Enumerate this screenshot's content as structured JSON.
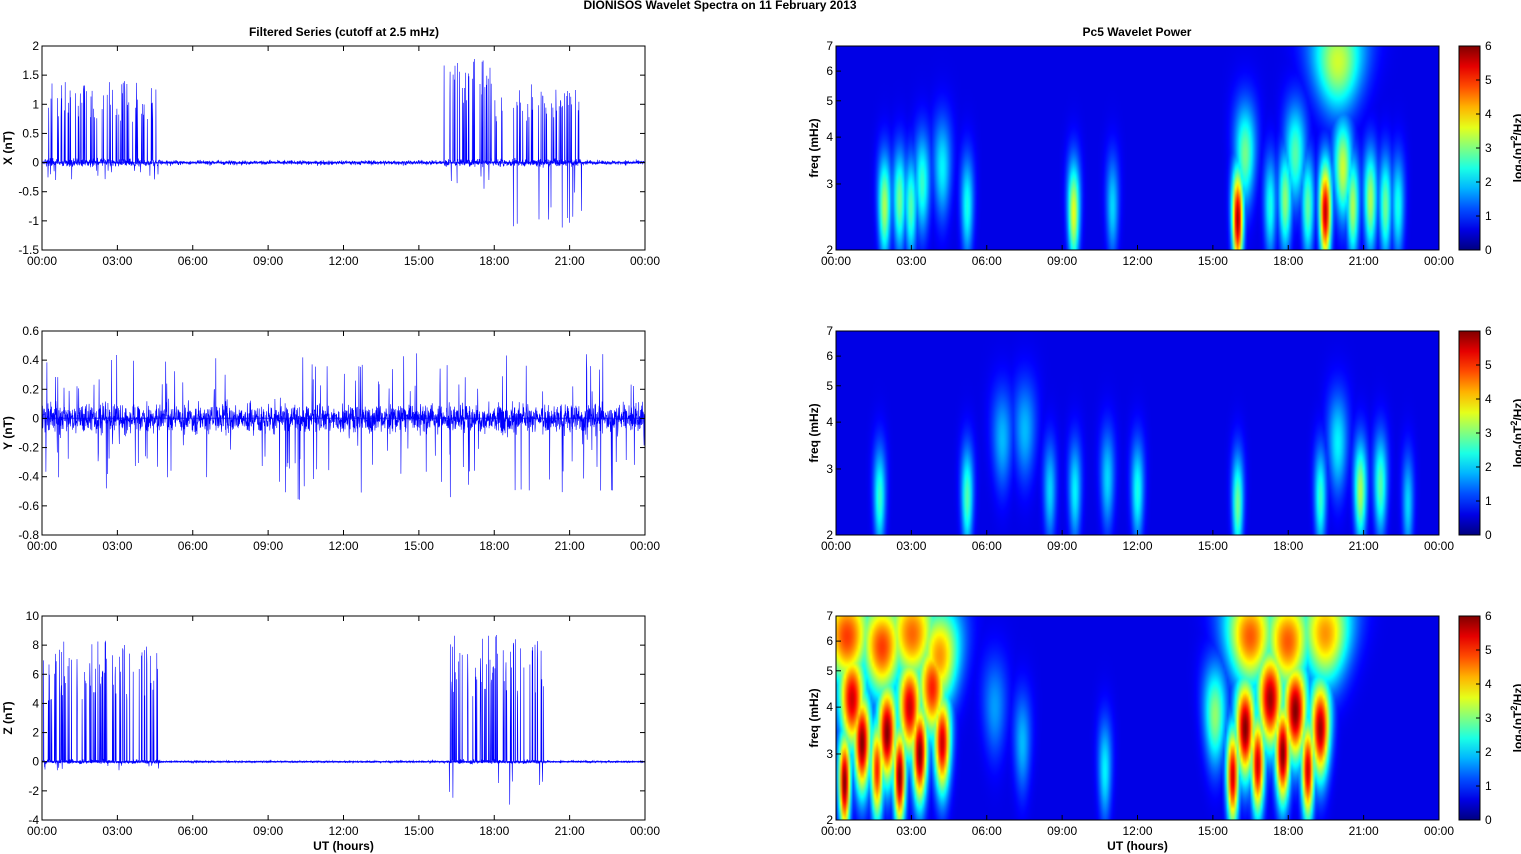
{
  "figure": {
    "title": "DIONISOS Wavelet Spectra on 11 February  2013",
    "left_title": "Filtered Series (cutoff at 2.5 mHz)",
    "right_title": "Pc5 Wavelet Power",
    "xlabel": "UT (hours)"
  },
  "colors": {
    "trace": "#0000ff",
    "spectrum_bg": "#00008f"
  },
  "chart_data": [
    {
      "type": "line",
      "name": "X component",
      "ylabel": "X (nT)",
      "x_ticks": [
        "00:00",
        "03:00",
        "06:00",
        "09:00",
        "12:00",
        "15:00",
        "18:00",
        "21:00",
        "00:00"
      ],
      "x_range_hours": [
        0,
        24
      ],
      "y_ticks": [
        2,
        1.5,
        1,
        0.5,
        0,
        -0.5,
        -1,
        -1.5
      ],
      "ylim": [
        -1.5,
        2
      ],
      "noise_amplitude": 0.06,
      "spike_bursts": [
        {
          "start": 0.05,
          "end": 4.7,
          "max": 1.4,
          "min": -0.3
        },
        {
          "start": 16.0,
          "end": 17.9,
          "max": 1.8,
          "min": -0.5
        },
        {
          "start": 18.0,
          "end": 21.5,
          "max": 1.35,
          "min": -1.2
        }
      ]
    },
    {
      "type": "line",
      "name": "Y component",
      "ylabel": "Y (nT)",
      "x_ticks": [
        "00:00",
        "03:00",
        "06:00",
        "09:00",
        "12:00",
        "15:00",
        "18:00",
        "21:00",
        "00:00"
      ],
      "x_range_hours": [
        0,
        24
      ],
      "y_ticks": [
        0.6,
        0.4,
        0.2,
        0,
        -0.2,
        -0.4,
        -0.6,
        -0.8
      ],
      "ylim": [
        -0.8,
        0.6
      ],
      "noise_amplitude": 0.09,
      "spike_bursts": [
        {
          "start": 0.0,
          "end": 24.0,
          "max": 0.45,
          "min": -0.58
        }
      ]
    },
    {
      "type": "line",
      "name": "Z component",
      "ylabel": "Z (nT)",
      "xlabel": "UT (hours)",
      "x_ticks": [
        "00:00",
        "03:00",
        "06:00",
        "09:00",
        "12:00",
        "15:00",
        "18:00",
        "21:00",
        "00:00"
      ],
      "x_range_hours": [
        0,
        24
      ],
      "y_ticks": [
        10,
        8,
        6,
        4,
        2,
        0,
        -2,
        -4
      ],
      "ylim": [
        -4,
        10
      ],
      "noise_amplitude": 0.12,
      "spike_bursts": [
        {
          "start": 0.05,
          "end": 4.7,
          "max": 8.3,
          "min": -0.6
        },
        {
          "start": 16.2,
          "end": 20.0,
          "max": 8.7,
          "min": -3.0
        }
      ]
    },
    {
      "type": "heatmap",
      "name": "X wavelet power",
      "ylabel": "freq (mHz)",
      "x_ticks": [
        "00:00",
        "03:00",
        "06:00",
        "09:00",
        "12:00",
        "15:00",
        "18:00",
        "21:00",
        "00:00"
      ],
      "y_ticks": [
        2,
        3,
        4,
        5,
        6,
        7
      ],
      "ylim_mhz": [
        2,
        7
      ],
      "colorbar_ticks": [
        0,
        1,
        2,
        3,
        4,
        5,
        6
      ],
      "colorbar_label": "log2(nT2/Hz)",
      "colorbar_label_parts": {
        "a": "log",
        "sub": "2",
        "b": "(nT",
        "sup": "2",
        "c": "/Hz)"
      },
      "blobs": [
        {
          "t": 1.9,
          "f": 2.6,
          "p": 3.0
        },
        {
          "t": 2.5,
          "f": 2.7,
          "p": 2.6
        },
        {
          "t": 2.95,
          "f": 2.6,
          "p": 2.4
        },
        {
          "t": 3.4,
          "f": 3.0,
          "p": 2.2
        },
        {
          "t": 4.2,
          "f": 3.3,
          "p": 1.8
        },
        {
          "t": 5.2,
          "f": 2.6,
          "p": 2.0
        },
        {
          "t": 9.45,
          "f": 2.5,
          "p": 3.4
        },
        {
          "t": 11.0,
          "f": 2.6,
          "p": 1.6
        },
        {
          "t": 16.0,
          "f": 2.4,
          "p": 5.8
        },
        {
          "t": 16.3,
          "f": 3.6,
          "p": 2.6
        },
        {
          "t": 17.3,
          "f": 2.6,
          "p": 2.0
        },
        {
          "t": 17.9,
          "f": 2.7,
          "p": 2.8
        },
        {
          "t": 18.3,
          "f": 3.6,
          "p": 2.4
        },
        {
          "t": 18.8,
          "f": 2.6,
          "p": 2.5
        },
        {
          "t": 19.5,
          "f": 2.5,
          "p": 5.6
        },
        {
          "t": 20.2,
          "f": 3.3,
          "p": 3.2
        },
        {
          "t": 20.6,
          "f": 2.6,
          "p": 3.0
        },
        {
          "t": 21.3,
          "f": 2.7,
          "p": 3.0
        },
        {
          "t": 21.9,
          "f": 2.6,
          "p": 2.6
        },
        {
          "t": 22.4,
          "f": 2.6,
          "p": 2.0
        },
        {
          "t": 20.0,
          "f": 6.4,
          "p": 3.2
        }
      ]
    },
    {
      "type": "heatmap",
      "name": "Y wavelet power",
      "ylabel": "freq (mHz)",
      "x_ticks": [
        "00:00",
        "03:00",
        "06:00",
        "09:00",
        "12:00",
        "15:00",
        "18:00",
        "21:00",
        "00:00"
      ],
      "y_ticks": [
        2,
        3,
        4,
        5,
        6,
        7
      ],
      "ylim_mhz": [
        2,
        7
      ],
      "colorbar_ticks": [
        0,
        1,
        2,
        3,
        4,
        5,
        6
      ],
      "colorbar_label": "log2(nT2/Hz)",
      "colorbar_label_parts": {
        "a": "log",
        "sub": "2",
        "b": "(nT",
        "sup": "2",
        "c": "/Hz)"
      },
      "blobs": [
        {
          "t": 1.7,
          "f": 2.5,
          "p": 2.2
        },
        {
          "t": 5.2,
          "f": 2.5,
          "p": 2.4
        },
        {
          "t": 6.6,
          "f": 3.6,
          "p": 1.4
        },
        {
          "t": 7.5,
          "f": 3.8,
          "p": 1.4
        },
        {
          "t": 8.5,
          "f": 2.6,
          "p": 1.6
        },
        {
          "t": 9.5,
          "f": 2.6,
          "p": 1.8
        },
        {
          "t": 10.8,
          "f": 2.8,
          "p": 1.6
        },
        {
          "t": 12.0,
          "f": 2.6,
          "p": 2.0
        },
        {
          "t": 16.0,
          "f": 2.4,
          "p": 2.6
        },
        {
          "t": 19.3,
          "f": 2.5,
          "p": 2.2
        },
        {
          "t": 20.0,
          "f": 3.5,
          "p": 1.8
        },
        {
          "t": 20.9,
          "f": 2.6,
          "p": 3.0
        },
        {
          "t": 21.7,
          "f": 2.7,
          "p": 2.4
        },
        {
          "t": 22.8,
          "f": 2.4,
          "p": 1.6
        }
      ]
    },
    {
      "type": "heatmap",
      "name": "Z wavelet power",
      "ylabel": "freq (mHz)",
      "xlabel": "UT (hours)",
      "x_ticks": [
        "00:00",
        "03:00",
        "06:00",
        "09:00",
        "12:00",
        "15:00",
        "18:00",
        "21:00",
        "00:00"
      ],
      "y_ticks": [
        2,
        3,
        4,
        5,
        6,
        7
      ],
      "ylim_mhz": [
        2,
        7
      ],
      "colorbar_ticks": [
        0,
        1,
        2,
        3,
        4,
        5,
        6
      ],
      "colorbar_label": "log2(nT2/Hz)",
      "colorbar_label_parts": {
        "a": "log",
        "sub": "2",
        "b": "(nT",
        "sup": "2",
        "c": "/Hz)"
      },
      "blobs": [
        {
          "t": 0.3,
          "f": 2.5,
          "p": 6
        },
        {
          "t": 0.6,
          "f": 4.2,
          "p": 5.5
        },
        {
          "t": 1.0,
          "f": 3.2,
          "p": 6
        },
        {
          "t": 1.6,
          "f": 2.7,
          "p": 5
        },
        {
          "t": 2.0,
          "f": 3.4,
          "p": 6
        },
        {
          "t": 2.5,
          "f": 2.6,
          "p": 6
        },
        {
          "t": 2.9,
          "f": 4.0,
          "p": 5.5
        },
        {
          "t": 3.3,
          "f": 3.0,
          "p": 6
        },
        {
          "t": 3.8,
          "f": 4.5,
          "p": 5
        },
        {
          "t": 4.2,
          "f": 3.2,
          "p": 5.5
        },
        {
          "t": 0.4,
          "f": 6.2,
          "p": 4.8
        },
        {
          "t": 1.8,
          "f": 5.8,
          "p": 4.8
        },
        {
          "t": 3.0,
          "f": 6.3,
          "p": 4.5
        },
        {
          "t": 4.1,
          "f": 5.5,
          "p": 4.2
        },
        {
          "t": 15.1,
          "f": 3.8,
          "p": 2.8
        },
        {
          "t": 15.8,
          "f": 2.6,
          "p": 5.5
        },
        {
          "t": 16.3,
          "f": 3.5,
          "p": 6
        },
        {
          "t": 16.8,
          "f": 2.8,
          "p": 5.5
        },
        {
          "t": 17.3,
          "f": 4.2,
          "p": 5.8
        },
        {
          "t": 17.8,
          "f": 3.0,
          "p": 6
        },
        {
          "t": 18.3,
          "f": 3.9,
          "p": 6
        },
        {
          "t": 18.8,
          "f": 2.7,
          "p": 5.5
        },
        {
          "t": 19.3,
          "f": 3.5,
          "p": 5.8
        },
        {
          "t": 16.5,
          "f": 6.2,
          "p": 4.6
        },
        {
          "t": 18.0,
          "f": 6.0,
          "p": 4.6
        },
        {
          "t": 19.5,
          "f": 6.3,
          "p": 4.2
        },
        {
          "t": 10.7,
          "f": 2.7,
          "p": 1.8
        },
        {
          "t": 7.4,
          "f": 3.2,
          "p": 1.4
        },
        {
          "t": 6.3,
          "f": 4.0,
          "p": 1.2
        }
      ]
    }
  ]
}
